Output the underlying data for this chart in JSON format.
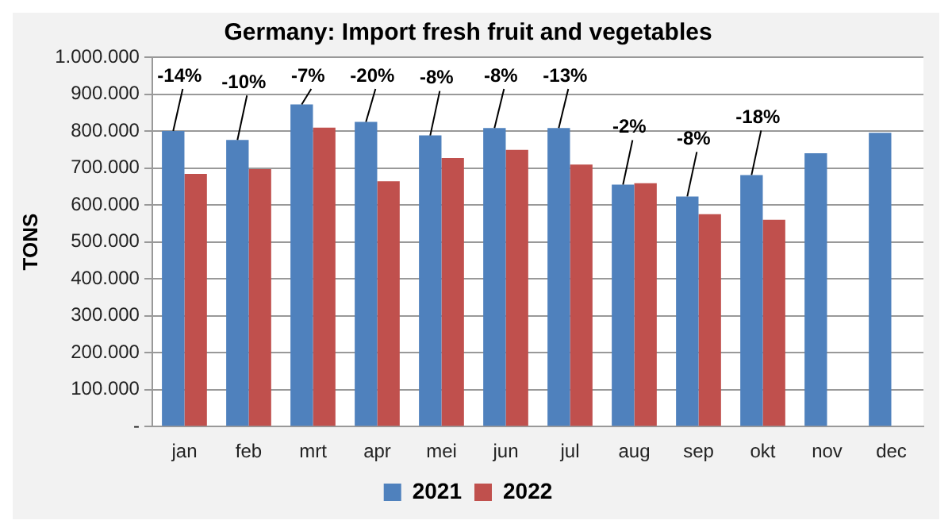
{
  "chart_data": {
    "type": "bar",
    "title": "Germany: Import fresh fruit and vegetables",
    "ylabel": "TONS",
    "categories": [
      "jan",
      "feb",
      "mrt",
      "apr",
      "mei",
      "jun",
      "jul",
      "aug",
      "sep",
      "okt",
      "nov",
      "dec"
    ],
    "series": [
      {
        "name": "2021",
        "color": "#4f81bd",
        "values": [
          800000,
          776000,
          872000,
          825000,
          788000,
          808000,
          808000,
          655000,
          623000,
          681000,
          740000,
          795000
        ]
      },
      {
        "name": "2022",
        "color": "#c0504d",
        "values": [
          684000,
          697000,
          809000,
          664000,
          727000,
          749000,
          709000,
          659000,
          575000,
          560000,
          null,
          null
        ]
      }
    ],
    "ylim": [
      0,
      1000000
    ],
    "yticks": [
      {
        "value": 0,
        "label": "-"
      },
      {
        "value": 100000,
        "label": "100.000"
      },
      {
        "value": 200000,
        "label": "200.000"
      },
      {
        "value": 300000,
        "label": "300.000"
      },
      {
        "value": 400000,
        "label": "400.000"
      },
      {
        "value": 500000,
        "label": "500.000"
      },
      {
        "value": 600000,
        "label": "600.000"
      },
      {
        "value": 700000,
        "label": "700.000"
      },
      {
        "value": 800000,
        "label": "800.000"
      },
      {
        "value": 900000,
        "label": "900.000"
      },
      {
        "value": 1000000,
        "label": "1.000.000"
      }
    ],
    "annotations": [
      {
        "text": "-14%",
        "x": "jan",
        "y": 800000
      },
      {
        "text": "-10%",
        "x": "feb",
        "y": 776000
      },
      {
        "text": "-7%",
        "x": "mrt",
        "y": 872000
      },
      {
        "text": "-20%",
        "x": "apr",
        "y": 825000
      },
      {
        "text": "-8%",
        "x": "mei",
        "y": 788000
      },
      {
        "text": "-8%",
        "x": "jun",
        "y": 808000
      },
      {
        "text": "-13%",
        "x": "jul",
        "y": 808000
      },
      {
        "text": "-2%",
        "x": "aug",
        "y": 655000
      },
      {
        "text": "-8%",
        "x": "sep",
        "y": 623000
      },
      {
        "text": "-18%",
        "x": "okt",
        "y": 681000
      }
    ],
    "grid": "y",
    "legend": "bottom"
  }
}
